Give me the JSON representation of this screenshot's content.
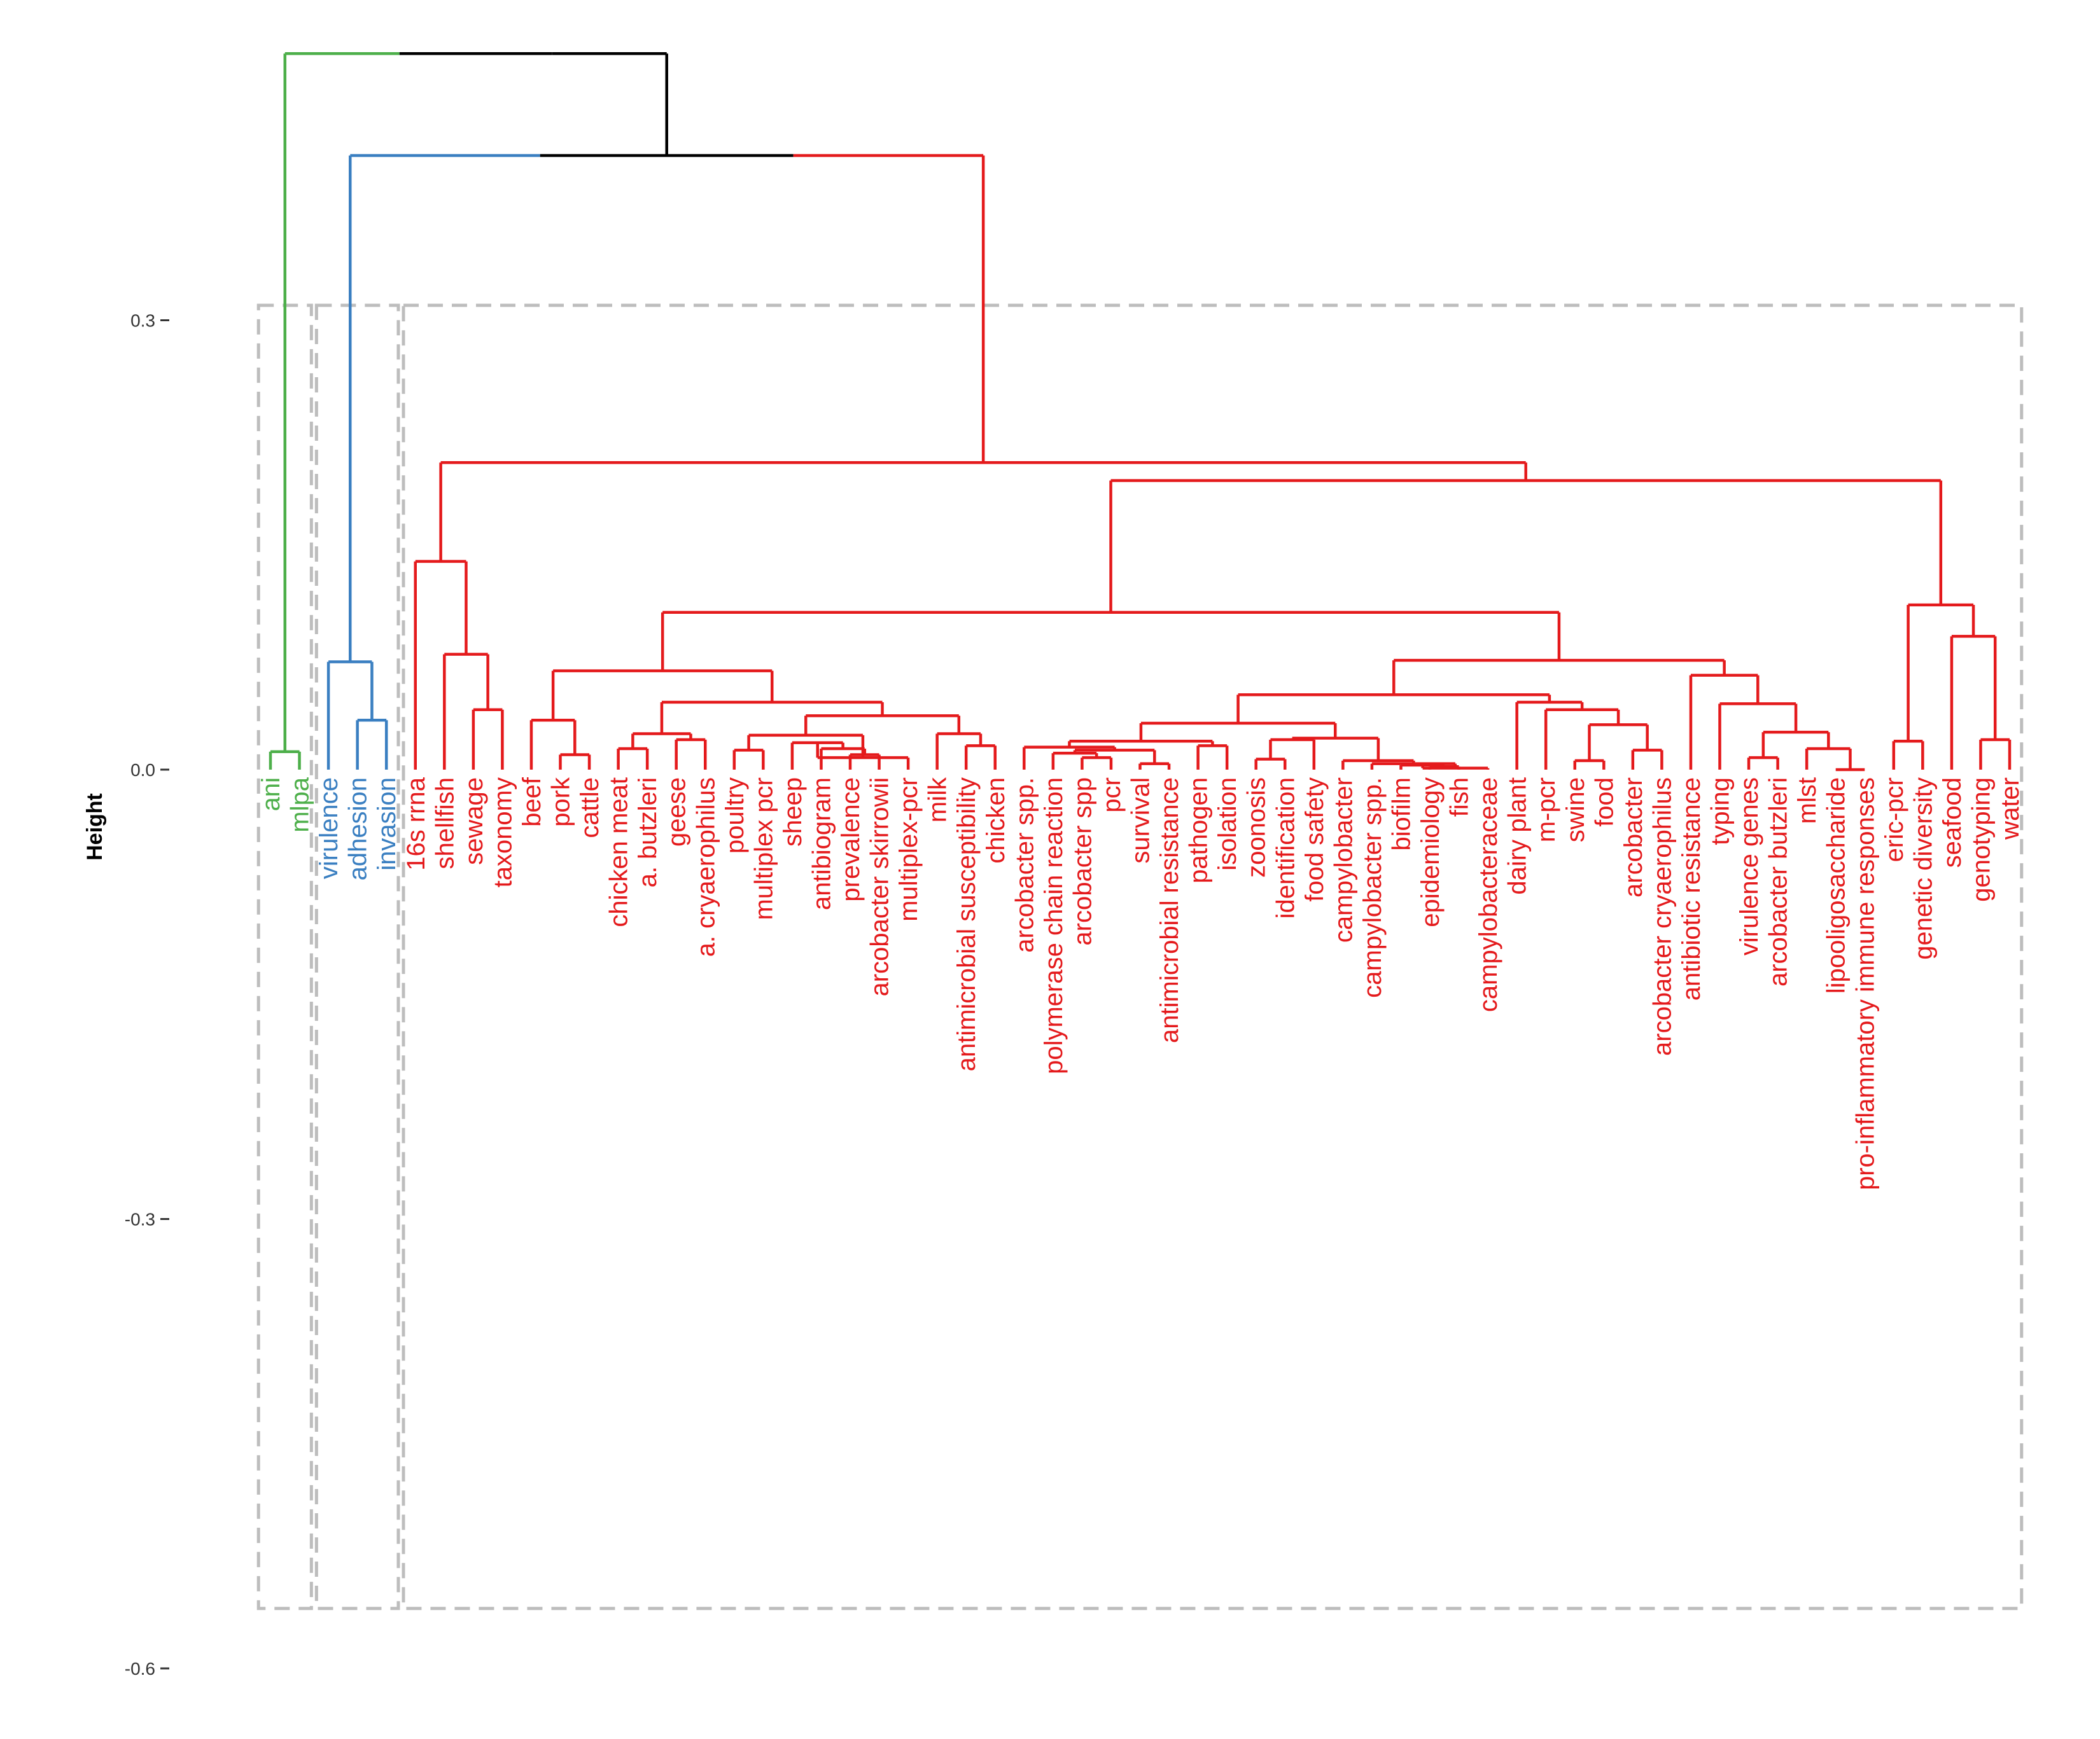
{
  "chart_data": {
    "type": "dendrogram",
    "title": "",
    "xlabel": "",
    "ylabel": "Height",
    "ylim": [
      -0.6,
      0.48
    ],
    "yticks": [
      0.3,
      0.0,
      -0.3,
      -0.6
    ],
    "ytick_labels": [
      "0.3",
      "0.0",
      "-0.3",
      "-0.6"
    ],
    "grid": false,
    "cluster_colors": {
      "green": "#4daf4a",
      "blue": "#3a7fc1",
      "red": "#e41a1c",
      "root": "#000000"
    },
    "box_bottom": -0.56,
    "box_top": 0.31,
    "leaves": [
      {
        "label": "ani",
        "cluster": "green"
      },
      {
        "label": "mlpa",
        "cluster": "green"
      },
      {
        "label": "virulence",
        "cluster": "blue"
      },
      {
        "label": "adhesion",
        "cluster": "blue"
      },
      {
        "label": "invasion",
        "cluster": "blue"
      },
      {
        "label": "16s rrna",
        "cluster": "red"
      },
      {
        "label": "shellfish",
        "cluster": "red"
      },
      {
        "label": "sewage",
        "cluster": "red"
      },
      {
        "label": "taxonomy",
        "cluster": "red"
      },
      {
        "label": "beef",
        "cluster": "red"
      },
      {
        "label": "pork",
        "cluster": "red"
      },
      {
        "label": "cattle",
        "cluster": "red"
      },
      {
        "label": "chicken meat",
        "cluster": "red"
      },
      {
        "label": "a. butzleri",
        "cluster": "red"
      },
      {
        "label": "geese",
        "cluster": "red"
      },
      {
        "label": "a. cryaerophilus",
        "cluster": "red"
      },
      {
        "label": "poultry",
        "cluster": "red"
      },
      {
        "label": "multiplex pcr",
        "cluster": "red"
      },
      {
        "label": "sheep",
        "cluster": "red"
      },
      {
        "label": "antibiogram",
        "cluster": "red"
      },
      {
        "label": "prevalence",
        "cluster": "red"
      },
      {
        "label": "arcobacter skirrowii",
        "cluster": "red"
      },
      {
        "label": "multiplex-pcr",
        "cluster": "red"
      },
      {
        "label": "milk",
        "cluster": "red"
      },
      {
        "label": "antimicrobial susceptibility",
        "cluster": "red"
      },
      {
        "label": "chicken",
        "cluster": "red"
      },
      {
        "label": "arcobacter spp.",
        "cluster": "red"
      },
      {
        "label": "polymerase chain reaction",
        "cluster": "red"
      },
      {
        "label": "arcobacter spp",
        "cluster": "red"
      },
      {
        "label": "pcr",
        "cluster": "red"
      },
      {
        "label": "survival",
        "cluster": "red"
      },
      {
        "label": "antimicrobial resistance",
        "cluster": "red"
      },
      {
        "label": "pathogen",
        "cluster": "red"
      },
      {
        "label": "isolation",
        "cluster": "red"
      },
      {
        "label": "zoonosis",
        "cluster": "red"
      },
      {
        "label": "identification",
        "cluster": "red"
      },
      {
        "label": "food safety",
        "cluster": "red"
      },
      {
        "label": "campylobacter",
        "cluster": "red"
      },
      {
        "label": "campylobacter spp.",
        "cluster": "red"
      },
      {
        "label": "biofilm",
        "cluster": "red"
      },
      {
        "label": "epidemiology",
        "cluster": "red"
      },
      {
        "label": "fish",
        "cluster": "red"
      },
      {
        "label": "campylobacteraceae",
        "cluster": "red"
      },
      {
        "label": "dairy plant",
        "cluster": "red"
      },
      {
        "label": "m-pcr",
        "cluster": "red"
      },
      {
        "label": "swine",
        "cluster": "red"
      },
      {
        "label": "food",
        "cluster": "red"
      },
      {
        "label": "arcobacter",
        "cluster": "red"
      },
      {
        "label": "arcobacter cryaerophilus",
        "cluster": "red"
      },
      {
        "label": "antibiotic resistance",
        "cluster": "red"
      },
      {
        "label": "typing",
        "cluster": "red"
      },
      {
        "label": "virulence genes",
        "cluster": "red"
      },
      {
        "label": "arcobacter butzleri",
        "cluster": "red"
      },
      {
        "label": "mlst",
        "cluster": "red"
      },
      {
        "label": "lipooligosaccharide",
        "cluster": "red"
      },
      {
        "label": "pro-inflammatory immune responses",
        "cluster": "red"
      },
      {
        "label": "eric-pcr",
        "cluster": "red"
      },
      {
        "label": "genetic diversity",
        "cluster": "red"
      },
      {
        "label": "seafood",
        "cluster": "red"
      },
      {
        "label": "genotyping",
        "cluster": "red"
      },
      {
        "label": "water",
        "cluster": "red"
      }
    ],
    "merges": [
      {
        "a": "L0",
        "b": "L1",
        "h": 0.012,
        "color": "green"
      },
      {
        "a": "L3",
        "b": "L4",
        "h": 0.033,
        "color": "blue"
      },
      {
        "a": "L2",
        "b": "M1",
        "h": 0.072,
        "color": "blue"
      },
      {
        "a": "L7",
        "b": "L8",
        "h": 0.04,
        "color": "red"
      },
      {
        "a": "L6",
        "b": "M3",
        "h": 0.077,
        "color": "red"
      },
      {
        "a": "L5",
        "b": "M4",
        "h": 0.139,
        "color": "red"
      },
      {
        "a": "L10",
        "b": "L11",
        "h": 0.01,
        "color": "red"
      },
      {
        "a": "L9",
        "b": "M6",
        "h": 0.033,
        "color": "red"
      },
      {
        "a": "L12",
        "b": "L13",
        "h": 0.014,
        "color": "red"
      },
      {
        "a": "L14",
        "b": "L15",
        "h": 0.02,
        "color": "red"
      },
      {
        "a": "M8",
        "b": "M9",
        "h": 0.024,
        "color": "red"
      },
      {
        "a": "L16",
        "b": "L17",
        "h": 0.013,
        "color": "red"
      },
      {
        "a": "L20",
        "b": "L21",
        "h": 0.01,
        "color": "red"
      },
      {
        "a": "L19",
        "b": "M12",
        "h": 0.014,
        "color": "red"
      },
      {
        "a": "L18",
        "b": "M13",
        "h": 0.018,
        "color": "red"
      },
      {
        "a": "M14",
        "b": "L22",
        "h": 0.008,
        "color": "red"
      },
      {
        "a": "M11",
        "b": "M15",
        "h": 0.023,
        "color": "red"
      },
      {
        "a": "L24",
        "b": "L25",
        "h": 0.016,
        "color": "red"
      },
      {
        "a": "L23",
        "b": "M17",
        "h": 0.024,
        "color": "red"
      },
      {
        "a": "M16",
        "b": "M18",
        "h": 0.036,
        "color": "red"
      },
      {
        "a": "M10",
        "b": "M19",
        "h": 0.045,
        "color": "red"
      },
      {
        "a": "M7",
        "b": "M20",
        "h": 0.066,
        "color": "red"
      },
      {
        "a": "L28",
        "b": "L29",
        "h": 0.008,
        "color": "red"
      },
      {
        "a": "L27",
        "b": "M22",
        "h": 0.011,
        "color": "red"
      },
      {
        "a": "L30",
        "b": "L31",
        "h": 0.004,
        "color": "red"
      },
      {
        "a": "M23",
        "b": "M24",
        "h": 0.013,
        "color": "red"
      },
      {
        "a": "L26",
        "b": "M25",
        "h": 0.015,
        "color": "red"
      },
      {
        "a": "L32",
        "b": "L33",
        "h": 0.016,
        "color": "red"
      },
      {
        "a": "M26",
        "b": "M27",
        "h": 0.019,
        "color": "red"
      },
      {
        "a": "L40",
        "b": "L41",
        "h": 0.002,
        "color": "red"
      },
      {
        "a": "L39",
        "b": "M29",
        "h": 0.003,
        "color": "red"
      },
      {
        "a": "M30",
        "b": "L42",
        "h": 0.001,
        "color": "red"
      },
      {
        "a": "L38",
        "b": "M31",
        "h": 0.004,
        "color": "red"
      },
      {
        "a": "L37",
        "b": "M32",
        "h": 0.006,
        "color": "red"
      },
      {
        "a": "L34",
        "b": "L35",
        "h": 0.007,
        "color": "red"
      },
      {
        "a": "M34",
        "b": "L36",
        "h": 0.02,
        "color": "red"
      },
      {
        "a": "M35",
        "b": "M33",
        "h": 0.021,
        "color": "red"
      },
      {
        "a": "M28",
        "b": "M36",
        "h": 0.031,
        "color": "red"
      },
      {
        "a": "L45",
        "b": "L46",
        "h": 0.006,
        "color": "red"
      },
      {
        "a": "L47",
        "b": "L48",
        "h": 0.013,
        "color": "red"
      },
      {
        "a": "M38",
        "b": "M39",
        "h": 0.03,
        "color": "red"
      },
      {
        "a": "L44",
        "b": "M40",
        "h": 0.04,
        "color": "red"
      },
      {
        "a": "L43",
        "b": "M41",
        "h": 0.045,
        "color": "red"
      },
      {
        "a": "M37",
        "b": "M42",
        "h": 0.05,
        "color": "red"
      },
      {
        "a": "L51",
        "b": "L52",
        "h": 0.008,
        "color": "red"
      },
      {
        "a": "L54",
        "b": "L55",
        "h": 0.0,
        "color": "red"
      },
      {
        "a": "L53",
        "b": "M45",
        "h": 0.014,
        "color": "red"
      },
      {
        "a": "M44",
        "b": "M46",
        "h": 0.025,
        "color": "red"
      },
      {
        "a": "L50",
        "b": "M47",
        "h": 0.044,
        "color": "red"
      },
      {
        "a": "L49",
        "b": "M48",
        "h": 0.063,
        "color": "red"
      },
      {
        "a": "M43",
        "b": "M49",
        "h": 0.073,
        "color": "red"
      },
      {
        "a": "M21",
        "b": "M50",
        "h": 0.105,
        "color": "red"
      },
      {
        "a": "L56",
        "b": "L57",
        "h": 0.019,
        "color": "red"
      },
      {
        "a": "L59",
        "b": "L60",
        "h": 0.02,
        "color": "red"
      },
      {
        "a": "L58",
        "b": "M53",
        "h": 0.089,
        "color": "red"
      },
      {
        "a": "M52",
        "b": "M54",
        "h": 0.11,
        "color": "red"
      },
      {
        "a": "M51",
        "b": "M55",
        "h": 0.193,
        "color": "red"
      },
      {
        "a": "M5",
        "b": "M56",
        "h": 0.205,
        "color": "red"
      },
      {
        "a": "M2",
        "b": "M57",
        "h": 0.41,
        "color": "split"
      },
      {
        "a": "M0",
        "b": "M58",
        "h": 0.478,
        "color": "split"
      }
    ],
    "cluster_boxes": [
      {
        "from_leaf": 0,
        "to_leaf": 1
      },
      {
        "from_leaf": 2,
        "to_leaf": 4
      },
      {
        "from_leaf": 5,
        "to_leaf": 60
      }
    ]
  }
}
